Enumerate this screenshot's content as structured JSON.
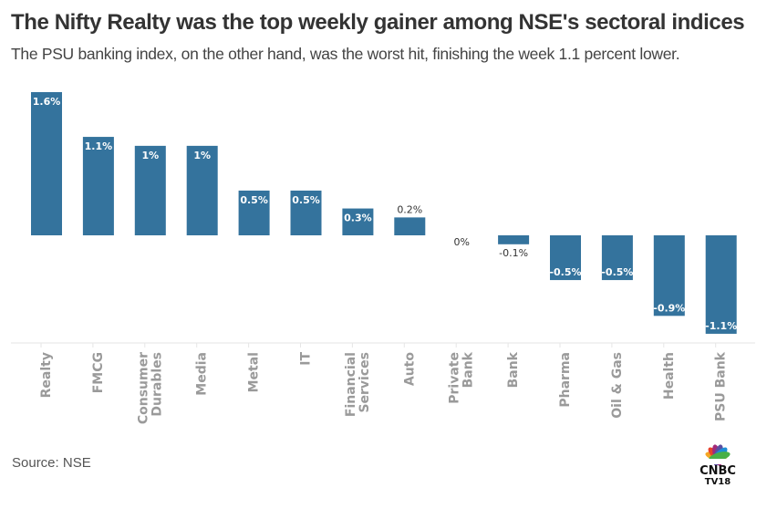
{
  "header": {
    "title": "The Nifty Realty was the top weekly gainer among NSE's sectoral  indices",
    "subtitle": "The PSU banking index, on the other hand, was the worst hit, finishing the week 1.1 percent lower."
  },
  "footer": {
    "source": "Source: NSE",
    "logo_line1": "CNBC",
    "logo_line2": "TV18"
  },
  "colors": {
    "bar": "#34739d",
    "label_inside": "#ffffff",
    "label_outside": "#333333",
    "tick_label": "#9a9a9a",
    "axis": "#e6e6e6"
  },
  "chart_data": {
    "type": "bar",
    "title": "The Nifty Realty was the top weekly gainer among NSE's sectoral  indices",
    "subtitle": "The PSU banking index, on the other hand, was the worst hit, finishing the week 1.1 percent lower.",
    "xlabel": "",
    "ylabel": "",
    "categories": [
      [
        "Realty"
      ],
      [
        "FMCG"
      ],
      [
        "Consumer",
        "Durables"
      ],
      [
        "Media"
      ],
      [
        "Metal"
      ],
      [
        "IT"
      ],
      [
        "Financial",
        "Services"
      ],
      [
        "Auto"
      ],
      [
        "Private",
        "Bank"
      ],
      [
        "Bank"
      ],
      [
        "Pharma"
      ],
      [
        "Oil & Gas"
      ],
      [
        "Health"
      ],
      [
        "PSU Bank"
      ]
    ],
    "values": [
      1.6,
      1.1,
      1.0,
      1.0,
      0.5,
      0.5,
      0.3,
      0.2,
      0.0,
      -0.1,
      -0.5,
      -0.5,
      -0.9,
      -1.1
    ],
    "data_labels": [
      "1.6%",
      "1.1%",
      "1%",
      "1%",
      "0.5%",
      "0.5%",
      "0.3%",
      "0.2%",
      "0%",
      "-0.1%",
      "-0.5%",
      "-0.5%",
      "-0.9%",
      "-1.1%"
    ],
    "label_inside": [
      true,
      true,
      true,
      true,
      true,
      true,
      true,
      false,
      false,
      false,
      true,
      true,
      true,
      true
    ],
    "ylim": [
      -1.1,
      1.6
    ],
    "grid": false,
    "legend": "none",
    "source": "Source: NSE"
  }
}
